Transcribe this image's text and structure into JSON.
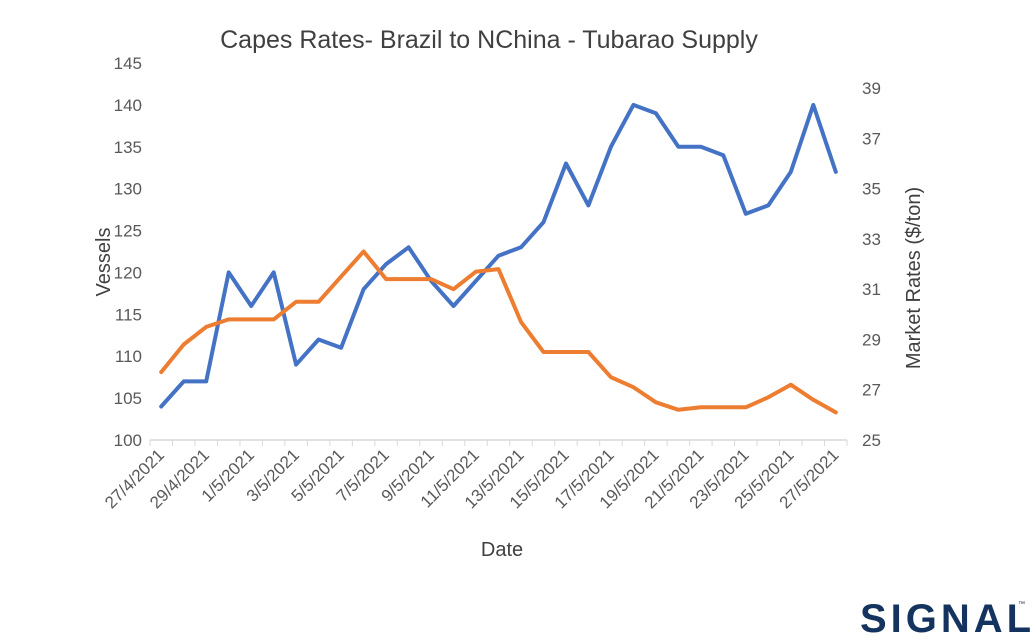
{
  "colors": {
    "vessels": "#4472C4",
    "rates": "#ED7D31",
    "axis": "#D9D9D9",
    "text": "#595959",
    "brand": "#14335E"
  },
  "logo": {
    "text": "SIGNAL",
    "trademark": "™"
  },
  "chart_data": {
    "type": "line",
    "title": "Capes Rates- Brazil to NChina - Tubarao Supply",
    "xlabel": "Date",
    "ylabel": "Vessels",
    "y2label": "Market Rates ($/ton)",
    "ylim": [
      100,
      145
    ],
    "y_ticks": [
      100,
      105,
      110,
      115,
      120,
      125,
      130,
      135,
      140,
      145
    ],
    "y2lim": [
      25,
      40
    ],
    "y2_ticks": [
      25,
      27,
      29,
      31,
      33,
      35,
      37,
      39
    ],
    "x_ticks": [
      "27/4/2021",
      "29/4/2021",
      "1/5/2021",
      "3/5/2021",
      "5/5/2021",
      "7/5/2021",
      "9/5/2021",
      "11/5/2021",
      "13/5/2021",
      "15/5/2021",
      "17/5/2021",
      "19/5/2021",
      "21/5/2021",
      "23/5/2021",
      "25/5/2021",
      "27/5/2021"
    ],
    "grid": false,
    "legend": "none",
    "x": [
      "27/4/2021",
      "28/4/2021",
      "29/4/2021",
      "30/4/2021",
      "1/5/2021",
      "2/5/2021",
      "3/5/2021",
      "4/5/2021",
      "5/5/2021",
      "6/5/2021",
      "7/5/2021",
      "8/5/2021",
      "9/5/2021",
      "10/5/2021",
      "11/5/2021",
      "12/5/2021",
      "13/5/2021",
      "14/5/2021",
      "15/5/2021",
      "16/5/2021",
      "17/5/2021",
      "18/5/2021",
      "19/5/2021",
      "20/5/2021",
      "21/5/2021",
      "22/5/2021",
      "23/5/2021",
      "24/5/2021",
      "25/5/2021",
      "26/5/2021",
      "27/5/2021"
    ],
    "series": [
      {
        "axis": "left",
        "values": [
          104,
          107,
          107,
          120,
          116,
          120,
          109,
          112,
          111,
          118,
          121,
          123,
          119,
          116,
          119,
          122,
          123,
          126,
          133,
          128,
          135,
          140,
          139,
          135,
          135,
          134,
          127,
          128,
          132,
          140,
          132
        ]
      },
      {
        "axis": "right",
        "values": [
          27.7,
          28.8,
          29.5,
          29.8,
          29.8,
          29.8,
          30.5,
          30.5,
          31.5,
          32.5,
          31.4,
          31.4,
          31.4,
          31.0,
          31.7,
          31.8,
          29.7,
          28.5,
          28.5,
          28.5,
          27.5,
          27.1,
          26.5,
          26.2,
          26.3,
          26.3,
          26.3,
          26.7,
          27.2,
          26.6,
          26.1
        ]
      }
    ]
  }
}
